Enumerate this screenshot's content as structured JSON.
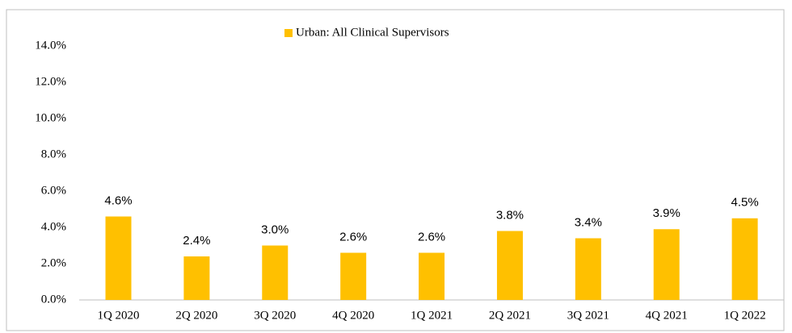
{
  "chart_data": {
    "type": "bar",
    "categories": [
      "1Q 2020",
      "2Q 2020",
      "3Q 2020",
      "4Q 2020",
      "1Q 2021",
      "2Q 2021",
      "3Q 2021",
      "4Q 2021",
      "1Q 2022"
    ],
    "series": [
      {
        "name": "Urban: All Clinical Supervisors",
        "color": "#ffc000",
        "values": [
          4.6,
          2.4,
          3.0,
          2.6,
          2.6,
          3.8,
          3.4,
          3.9,
          4.5
        ],
        "value_labels": [
          "4.6%",
          "2.4%",
          "3.0%",
          "2.6%",
          "2.6%",
          "3.8%",
          "3.4%",
          "3.9%",
          "4.5%"
        ]
      }
    ],
    "ylim": [
      0,
      14
    ],
    "yticks": [
      {
        "value": 0,
        "label": "0.0%"
      },
      {
        "value": 2,
        "label": "2.0%"
      },
      {
        "value": 4,
        "label": "4.0%"
      },
      {
        "value": 6,
        "label": "6.0%"
      },
      {
        "value": 8,
        "label": "8.0%"
      },
      {
        "value": 10,
        "label": "10.0%"
      },
      {
        "value": 12,
        "label": "12.0%"
      },
      {
        "value": 14,
        "label": "14.0%"
      }
    ],
    "grid": false,
    "legend": "top"
  }
}
